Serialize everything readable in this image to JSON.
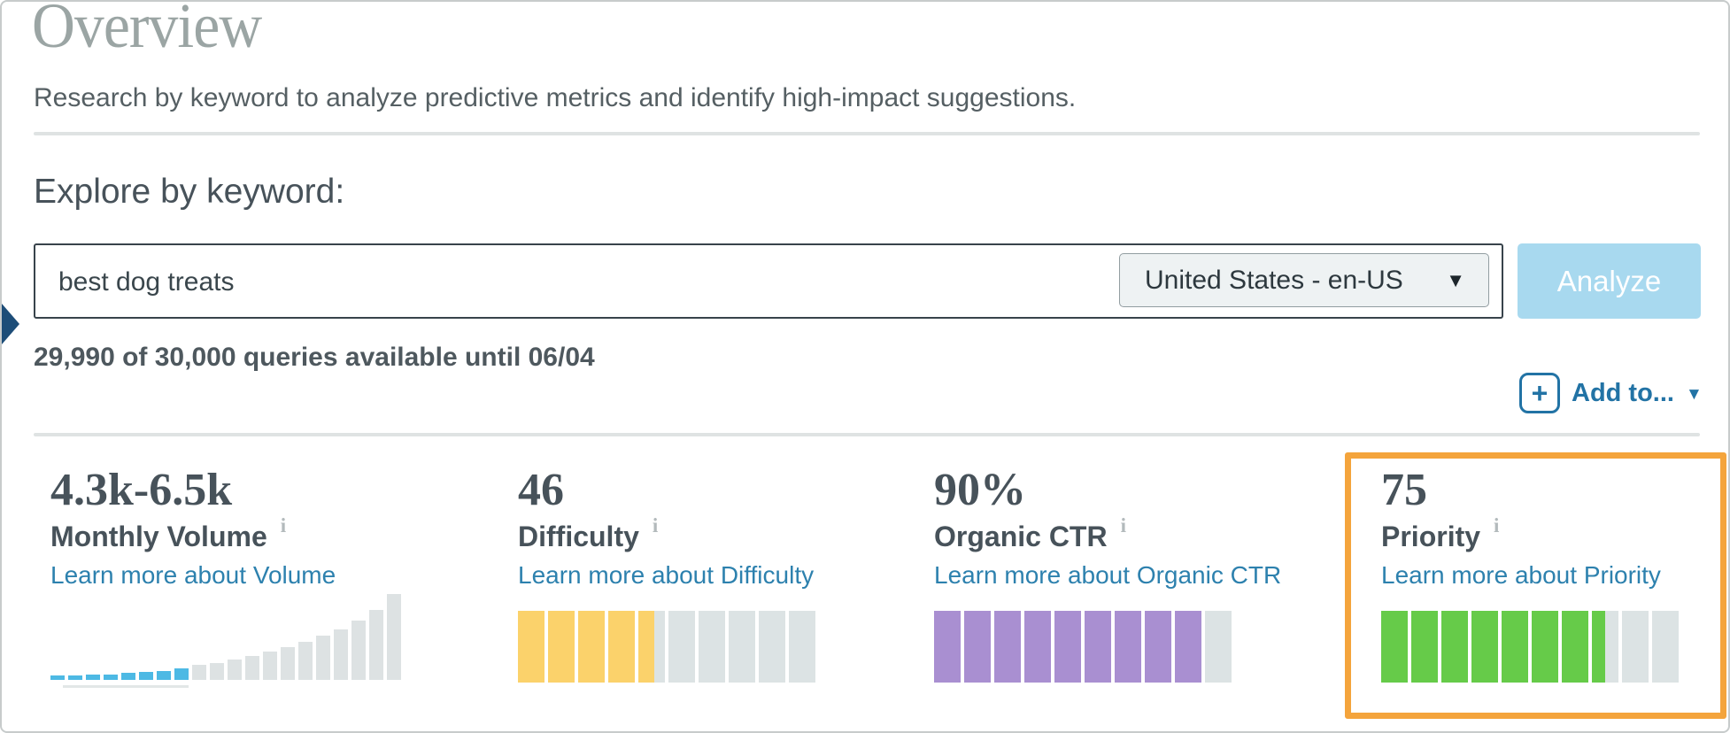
{
  "page": {
    "title": "Overview",
    "subtitle": "Research by keyword to analyze predictive metrics and identify high-impact suggestions."
  },
  "explore": {
    "heading": "Explore by keyword:",
    "keyword": "best dog treats",
    "locale": "United States - en-US",
    "analyze_label": "Analyze",
    "quota_text": "29,990 of 30,000 queries available until 06/04",
    "add_to_label": "Add to..."
  },
  "icons": {
    "plus_icon": "+",
    "dropdown_caret_icon": "▼",
    "addto_caret_icon": "▼",
    "info_icon": "i"
  },
  "colors": {
    "accent_blue": "#2d81ae",
    "analyze_bg": "#a8d9ef",
    "navy_marker": "#1d4d78",
    "highlight_orange": "#f4a43c",
    "segment_empty": "#dce3e4",
    "volume_bar_blue": "#4db9e4",
    "volume_bar_gray": "#dde2e3",
    "difficulty_yellow": "#fbd26b",
    "ctr_purple": "#a98fd1",
    "priority_green": "#66cb49",
    "divider_gray": "#dfe3e3",
    "text_dark": "#47525a"
  },
  "metrics": [
    {
      "id": "volume",
      "value": "4.3k-6.5k",
      "label": "Monthly Volume",
      "link": "Learn more about Volume",
      "chart_type": "histogram"
    },
    {
      "id": "difficulty",
      "value": "46",
      "label": "Difficulty",
      "link": "Learn more about Difficulty",
      "chart_type": "segments",
      "segments_total": 10,
      "segments_filled": 4.6,
      "fill_color": "#fbd26b"
    },
    {
      "id": "organic-ctr",
      "value": "90%",
      "label": "Organic CTR",
      "link": "Learn more about Organic CTR",
      "chart_type": "segments",
      "segments_total": 10,
      "segments_filled": 9,
      "fill_color": "#a98fd1"
    },
    {
      "id": "priority",
      "value": "75",
      "label": "Priority",
      "link": "Learn more about Priority",
      "chart_type": "segments",
      "segments_total": 10,
      "segments_filled": 7.5,
      "fill_color": "#66cb49",
      "highlighted": true,
      "highlight_color": "#f4a43c"
    }
  ],
  "chart_data": {
    "type": "bar",
    "title": "Monthly volume distribution histogram (no axis labels shown)",
    "highlighted_bars": 8,
    "highlight_color": "#4db9e4",
    "bar_color": "#dde2e3",
    "relative_heights": [
      5,
      5,
      6,
      6,
      8,
      9,
      10,
      13,
      17,
      19,
      23,
      27,
      32,
      37,
      43,
      50,
      57,
      67,
      79,
      97
    ]
  }
}
